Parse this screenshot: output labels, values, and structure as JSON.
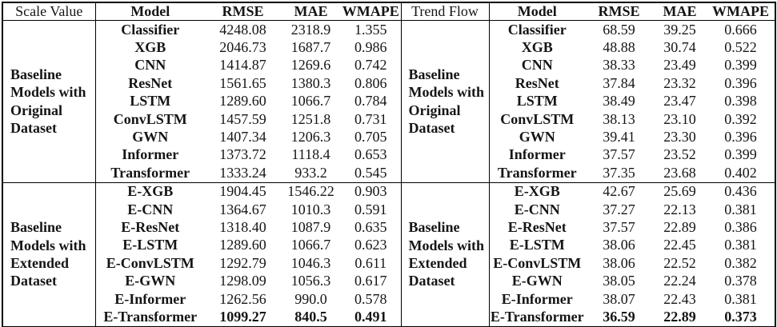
{
  "styles": {
    "background": "#ffffff",
    "text_color": "#151515",
    "border_color": "#000000"
  },
  "tables": [
    {
      "corner_label": "Scale Value",
      "columns": [
        "Model",
        "RMSE",
        "MAE",
        "WMAPE"
      ],
      "groups": [
        {
          "label_lines": [
            "Baseline",
            "Models with",
            "Original",
            "Dataset"
          ],
          "bold_value_rows": [],
          "rows": [
            [
              "Classifier",
              "4248.08",
              "2318.9",
              "1.355"
            ],
            [
              "XGB",
              "2046.73",
              "1687.7",
              "0.986"
            ],
            [
              "CNN",
              "1414.87",
              "1269.6",
              "0.742"
            ],
            [
              "ResNet",
              "1561.65",
              "1380.3",
              "0.806"
            ],
            [
              "LSTM",
              "1289.60",
              "1066.7",
              "0.784"
            ],
            [
              "ConvLSTM",
              "1457.59",
              "1251.8",
              "0.731"
            ],
            [
              "GWN",
              "1407.34",
              "1206.3",
              "0.705"
            ],
            [
              "Informer",
              "1373.72",
              "1118.4",
              "0.653"
            ],
            [
              "Transformer",
              "1333.24",
              "933.2",
              "0.545"
            ]
          ]
        },
        {
          "label_lines": [
            "Baseline",
            "Models with",
            "Extended",
            "Dataset"
          ],
          "bold_value_rows": [
            7
          ],
          "rows": [
            [
              "E-XGB",
              "1904.45",
              "1546.22",
              "0.903"
            ],
            [
              "E-CNN",
              "1364.67",
              "1010.3",
              "0.591"
            ],
            [
              "E-ResNet",
              "1318.40",
              "1087.9",
              "0.635"
            ],
            [
              "E-LSTM",
              "1289.60",
              "1066.7",
              "0.623"
            ],
            [
              "E-ConvLSTM",
              "1292.79",
              "1046.3",
              "0.611"
            ],
            [
              "E-GWN",
              "1298.09",
              "1056.3",
              "0.617"
            ],
            [
              "E-Informer",
              "1262.56",
              "990.0",
              "0.578"
            ],
            [
              "E-Transformer",
              "1099.27",
              "840.5",
              "0.491"
            ]
          ]
        }
      ]
    },
    {
      "corner_label": "Trend Flow",
      "columns": [
        "Model",
        "RMSE",
        "MAE",
        "WMAPE"
      ],
      "groups": [
        {
          "label_lines": [
            "Baseline",
            "Models with",
            "Original",
            "Dataset"
          ],
          "bold_value_rows": [],
          "rows": [
            [
              "Classifier",
              "68.59",
              "39.25",
              "0.666"
            ],
            [
              "XGB",
              "48.88",
              "30.74",
              "0.522"
            ],
            [
              "CNN",
              "38.33",
              "23.49",
              "0.399"
            ],
            [
              "ResNet",
              "37.84",
              "23.32",
              "0.396"
            ],
            [
              "LSTM",
              "38.49",
              "23.47",
              "0.398"
            ],
            [
              "ConvLSTM",
              "38.13",
              "23.10",
              "0.392"
            ],
            [
              "GWN",
              "39.41",
              "23.30",
              "0.396"
            ],
            [
              "Informer",
              "37.57",
              "23.52",
              "0.399"
            ],
            [
              "Transformer",
              "37.35",
              "23.68",
              "0.402"
            ]
          ]
        },
        {
          "label_lines": [
            "Baseline",
            "Models with",
            "Extended",
            "Dataset"
          ],
          "bold_value_rows": [
            7
          ],
          "rows": [
            [
              "E-XGB",
              "42.67",
              "25.69",
              "0.436"
            ],
            [
              "E-CNN",
              "37.27",
              "22.13",
              "0.381"
            ],
            [
              "E-ResNet",
              "37.57",
              "22.89",
              "0.386"
            ],
            [
              "E-LSTM",
              "38.06",
              "22.45",
              "0.381"
            ],
            [
              "E-ConvLSTM",
              "38.06",
              "22.52",
              "0.382"
            ],
            [
              "E-GWN",
              "38.05",
              "22.24",
              "0.378"
            ],
            [
              "E-Informer",
              "38.07",
              "22.43",
              "0.381"
            ],
            [
              "E-Transformer",
              "36.59",
              "22.89",
              "0.373"
            ]
          ]
        }
      ]
    }
  ]
}
